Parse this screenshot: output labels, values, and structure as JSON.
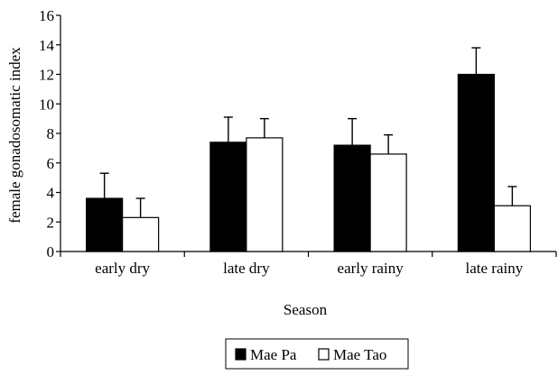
{
  "chart_data": {
    "type": "bar",
    "title": "",
    "xlabel": "Season",
    "ylabel": "female gonadosomatic index",
    "ylim": [
      0,
      16
    ],
    "yticks": [
      0,
      2,
      4,
      6,
      8,
      10,
      12,
      14,
      16
    ],
    "categories": [
      "early dry",
      "late dry",
      "early rainy",
      "late rainy"
    ],
    "series": [
      {
        "name": "Mae Pa",
        "color": "#000000",
        "values": [
          3.6,
          7.4,
          7.2,
          12.0
        ],
        "errors": [
          1.7,
          1.7,
          1.8,
          1.8
        ]
      },
      {
        "name": "Mae Tao",
        "color": "#ffffff",
        "values": [
          2.3,
          7.7,
          6.6,
          3.1
        ],
        "errors": [
          1.3,
          1.3,
          1.3,
          1.3
        ]
      }
    ],
    "error_bars": "upper",
    "grid": false,
    "legend_position": "bottom-center"
  }
}
